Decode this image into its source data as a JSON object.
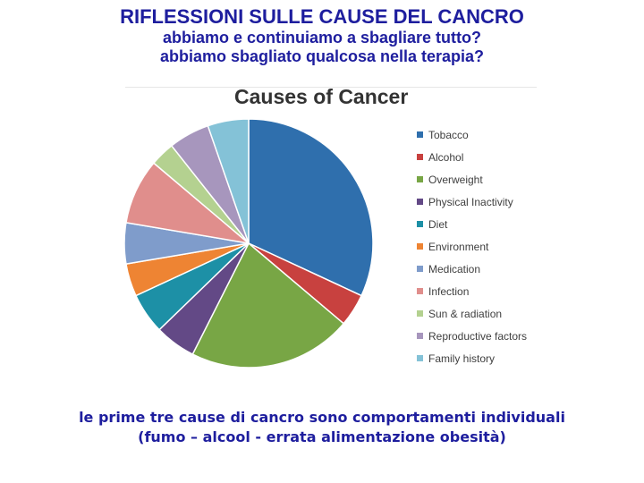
{
  "header": {
    "title": "RIFLESSIONI SULLE CAUSE DEL CANCRO",
    "line1": "abbiamo e continuiamo a sbagliare tutto?",
    "line2": "abbiamo sbagliato qualcosa nella terapia?"
  },
  "chart_data": {
    "type": "pie",
    "title": "Causes of Cancer",
    "legend_position": "right",
    "slices": [
      {
        "label": "Tobacco",
        "value": 30,
        "color": "#2f6fad"
      },
      {
        "label": "Alcohol",
        "value": 4,
        "color": "#c8413f"
      },
      {
        "label": "Overweight",
        "value": 20,
        "color": "#78a645"
      },
      {
        "label": "Physical Inactivity",
        "value": 5,
        "color": "#634986"
      },
      {
        "label": "Diet",
        "value": 5,
        "color": "#1d90a6"
      },
      {
        "label": "Environment",
        "value": 4,
        "color": "#ee8433"
      },
      {
        "label": "Medication",
        "value": 5,
        "color": "#7f9ccb"
      },
      {
        "label": "Infection",
        "value": 8,
        "color": "#e08e8c"
      },
      {
        "label": "Sun & radiation",
        "value": 3,
        "color": "#b4d190"
      },
      {
        "label": "Reproductive factors",
        "value": 5,
        "color": "#a796bd"
      },
      {
        "label": "Family history",
        "value": 5,
        "color": "#84c2d7"
      }
    ]
  },
  "footer": {
    "line1": "le prime tre cause di cancro sono comportamenti individuali",
    "line2": "(fumo – alcool - errata alimentazione obesità)"
  }
}
